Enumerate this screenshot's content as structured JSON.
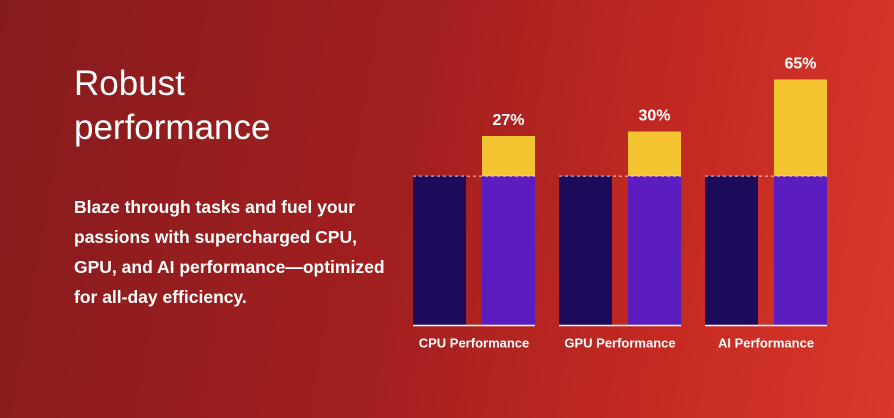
{
  "title": "Robust performance",
  "body": "Blaze through tasks and fuel your passions with supercharged CPU, GPU, and AI performance—optimized for all-day efficiency.",
  "chart_data": {
    "type": "bar",
    "categories": [
      "CPU Performance",
      "GPU Performance",
      "AI Performance"
    ],
    "series": [
      {
        "color": "#1c0b5a",
        "values": [
          100,
          100,
          100
        ]
      },
      {
        "color": "#5b1dbf",
        "values": [
          100,
          100,
          100
        ]
      },
      {
        "color": "#f5c531",
        "values": [
          27,
          30,
          65
        ],
        "value_labels": [
          "27%",
          "30%",
          "65%"
        ]
      }
    ],
    "ylim": [
      0,
      170
    ]
  }
}
